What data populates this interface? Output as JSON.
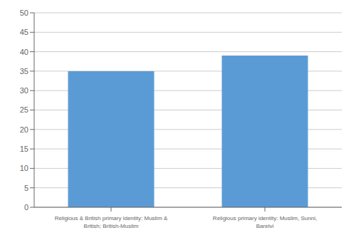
{
  "chart_data": {
    "type": "bar",
    "categories": [
      "Religious & British primary identity: Muslim &\nBritish; British-Muslim",
      "Religious primary identity: Muslim, Sunni,\nBarelvi"
    ],
    "values": [
      35,
      39
    ],
    "color": "#5B9BD5",
    "ylim": [
      0,
      50
    ],
    "yticks": [
      0,
      5,
      10,
      15,
      20,
      25,
      30,
      35,
      40,
      45,
      50
    ],
    "grid": true
  }
}
